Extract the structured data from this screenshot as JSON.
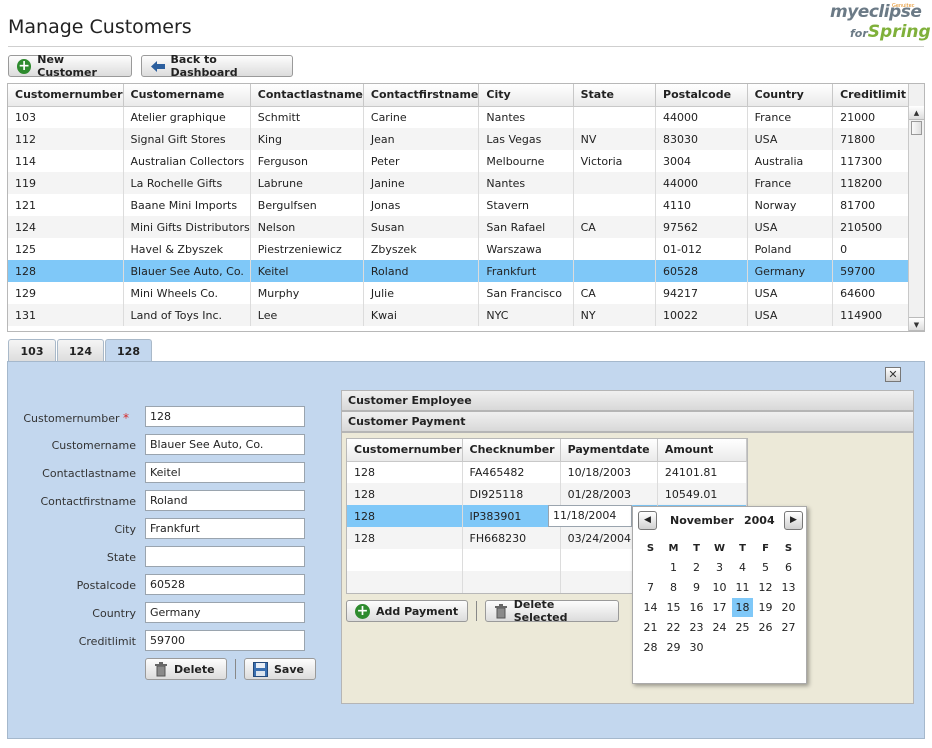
{
  "page_title": "Manage Customers",
  "logo": {
    "line1": "myeclipse",
    "for": "for",
    "line2": "Spring",
    "tiny": "Genuitec"
  },
  "toolbar": {
    "new_customer": "New Customer",
    "back": "Back to Dashboard"
  },
  "customers": {
    "columns": [
      "Customernumber",
      "Customername",
      "Contactlastname",
      "Contactfirstname",
      "City",
      "State",
      "Postalcode",
      "Country",
      "Creditlimit"
    ],
    "rows": [
      [
        "103",
        "Atelier graphique",
        "Schmitt",
        "Carine",
        "Nantes",
        "",
        "44000",
        "France",
        "21000"
      ],
      [
        "112",
        "Signal Gift Stores",
        "King",
        "Jean",
        "Las Vegas",
        "NV",
        "83030",
        "USA",
        "71800"
      ],
      [
        "114",
        "Australian Collectors",
        "Ferguson",
        "Peter",
        "Melbourne",
        "Victoria",
        "3004",
        "Australia",
        "117300"
      ],
      [
        "119",
        "La Rochelle Gifts",
        "Labrune",
        "Janine",
        "Nantes",
        "",
        "44000",
        "France",
        "118200"
      ],
      [
        "121",
        "Baane Mini Imports",
        "Bergulfsen",
        "Jonas",
        "Stavern",
        "",
        "4110",
        "Norway",
        "81700"
      ],
      [
        "124",
        "Mini Gifts Distributors",
        "Nelson",
        "Susan",
        "San Rafael",
        "CA",
        "97562",
        "USA",
        "210500"
      ],
      [
        "125",
        "Havel & Zbyszek",
        "Piestrzeniewicz",
        "Zbyszek",
        "Warszawa",
        "",
        "01-012",
        "Poland",
        "0"
      ],
      [
        "128",
        "Blauer See Auto, Co.",
        "Keitel",
        "Roland",
        "Frankfurt",
        "",
        "60528",
        "Germany",
        "59700"
      ],
      [
        "129",
        "Mini Wheels Co.",
        "Murphy",
        "Julie",
        "San Francisco",
        "CA",
        "94217",
        "USA",
        "64600"
      ],
      [
        "131",
        "Land of Toys Inc.",
        "Lee",
        "Kwai",
        "NYC",
        "NY",
        "10022",
        "USA",
        "114900"
      ]
    ],
    "selected_row": 7
  },
  "tabs": [
    "103",
    "124",
    "128"
  ],
  "active_tab": 2,
  "form": {
    "fields": [
      {
        "label": "Customernumber",
        "value": "128",
        "required": true
      },
      {
        "label": "Customername",
        "value": "Blauer See Auto, Co."
      },
      {
        "label": "Contactlastname",
        "value": "Keitel"
      },
      {
        "label": "Contactfirstname",
        "value": "Roland"
      },
      {
        "label": "City",
        "value": "Frankfurt"
      },
      {
        "label": "State",
        "value": ""
      },
      {
        "label": "Postalcode",
        "value": "60528"
      },
      {
        "label": "Country",
        "value": "Germany"
      },
      {
        "label": "Creditlimit",
        "value": "59700"
      }
    ],
    "delete_label": "Delete",
    "save_label": "Save",
    "required_mark": "*"
  },
  "sections": {
    "employee": "Customer Employee",
    "payment": "Customer Payment"
  },
  "payments": {
    "columns": [
      "Customernumber",
      "Checknumber",
      "Paymentdate",
      "Amount"
    ],
    "rows": [
      [
        "128",
        "FA465482",
        "10/18/2003",
        "24101.81"
      ],
      [
        "128",
        "DI925118",
        "01/28/2003",
        "10549.01"
      ],
      [
        "128",
        "IP383901",
        "11/18/2004",
        ""
      ],
      [
        "128",
        "FH668230",
        "03/24/2004",
        ""
      ]
    ],
    "selected_row": 2,
    "add_label": "Add Payment",
    "delete_label": "Delete Selected"
  },
  "calendar": {
    "month": "November",
    "year": "2004",
    "weekdays": [
      "S",
      "M",
      "T",
      "W",
      "T",
      "F",
      "S"
    ],
    "first_weekday": 1,
    "days_in_month": 30,
    "selected_day": 18
  },
  "colors": {
    "selection": "#7fc8f8",
    "panel": "#c3d7ee",
    "required": "#d62828"
  }
}
